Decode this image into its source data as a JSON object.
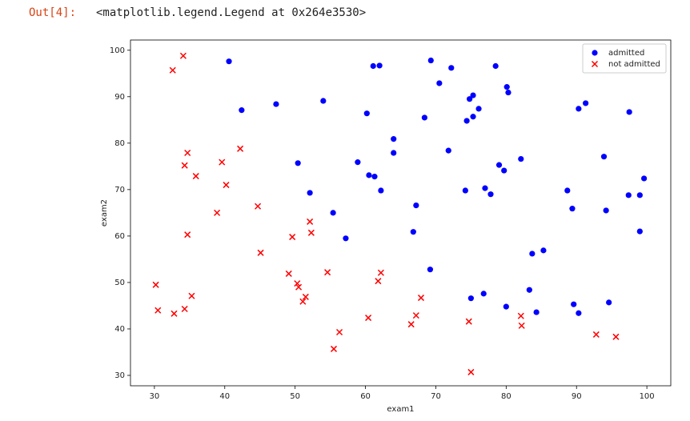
{
  "prompt": "Out[4]:",
  "output_text": "<matplotlib.legend.Legend at 0x264e3530>",
  "chart_data": {
    "type": "scatter",
    "xlabel": "exam1",
    "ylabel": "exam2",
    "xlim": [
      26.6,
      103.4
    ],
    "ylim": [
      27.76,
      102.2
    ],
    "xticks": [
      30,
      40,
      50,
      60,
      70,
      80,
      90,
      100
    ],
    "yticks": [
      30,
      40,
      50,
      60,
      70,
      80,
      90,
      100
    ],
    "legend": "upper right",
    "series": [
      {
        "name": "admitted",
        "color": "#0000ff",
        "marker": "o",
        "x": [
          40.6,
          42.4,
          47.3,
          54.0,
          50.4,
          52.1,
          55.4,
          57.2,
          58.9,
          60.2,
          60.5,
          61.1,
          61.3,
          62.0,
          62.2,
          64.0,
          64.0,
          67.2,
          66.8,
          68.4,
          69.3,
          69.2,
          70.5,
          71.8,
          72.2,
          74.2,
          74.4,
          74.8,
          75.3,
          75.3,
          76.1,
          75.0,
          76.8,
          77.0,
          77.8,
          78.5,
          79.0,
          79.7,
          80.1,
          80.3,
          80.0,
          82.1,
          83.3,
          83.7,
          84.3,
          85.3,
          88.7,
          89.4,
          89.6,
          90.3,
          90.3,
          91.3,
          93.9,
          94.2,
          94.6,
          97.5,
          97.4,
          99.0,
          99.6,
          99.0
        ],
        "values": [
          97.6,
          87.1,
          88.4,
          89.1,
          75.7,
          69.3,
          65.0,
          59.5,
          75.9,
          86.4,
          73.1,
          96.6,
          72.8,
          96.7,
          69.8,
          80.9,
          77.9,
          66.6,
          60.9,
          85.5,
          97.8,
          52.8,
          92.9,
          78.4,
          96.2,
          69.8,
          84.8,
          89.5,
          90.3,
          85.7,
          87.4,
          46.6,
          47.6,
          70.3,
          69.0,
          96.6,
          75.3,
          74.1,
          92.1,
          90.9,
          44.8,
          76.6,
          48.4,
          56.2,
          43.6,
          56.9,
          69.8,
          65.9,
          45.3,
          87.4,
          43.4,
          88.6,
          77.1,
          65.5,
          45.7,
          86.7,
          68.8,
          68.8,
          72.4,
          61.0
        ]
      },
      {
        "name": "not admitted",
        "color": "#ff0000",
        "marker": "x",
        "x": [
          34.1,
          32.6,
          34.7,
          34.3,
          35.9,
          42.2,
          39.6,
          40.2,
          44.7,
          38.9,
          34.7,
          45.1,
          49.6,
          52.1,
          52.3,
          30.2,
          30.5,
          32.8,
          34.3,
          35.3,
          49.1,
          50.3,
          50.5,
          51.5,
          51.1,
          54.6,
          62.2,
          61.8,
          67.9,
          67.2,
          66.5,
          60.4,
          56.3,
          55.5,
          74.7,
          75.0,
          82.1,
          82.2,
          92.8,
          95.6
        ],
        "values": [
          98.8,
          95.7,
          77.9,
          75.2,
          72.9,
          78.8,
          75.9,
          71.0,
          66.4,
          65.0,
          60.3,
          56.4,
          59.8,
          63.1,
          60.7,
          49.5,
          44.0,
          43.3,
          44.3,
          47.1,
          51.9,
          49.8,
          49.0,
          46.9,
          45.9,
          52.2,
          52.1,
          50.3,
          46.7,
          42.9,
          41.0,
          42.4,
          39.3,
          35.7,
          41.6,
          30.7,
          42.8,
          40.7,
          38.8,
          38.3
        ]
      }
    ]
  }
}
